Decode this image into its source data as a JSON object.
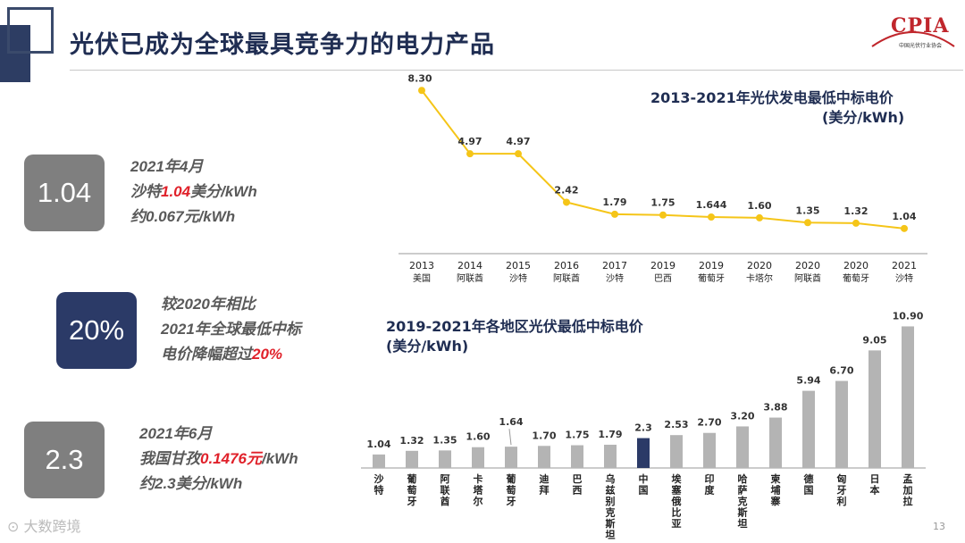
{
  "header": {
    "title": "光伏已成为全球最具竞争力的电力产品",
    "logo_text": "CPIA",
    "logo_subtitle": "中国光伏行业协会"
  },
  "kpis": [
    {
      "value": "1.04",
      "lines": [
        [
          {
            "t": "2021年4月"
          }
        ],
        [
          {
            "t": "沙特"
          },
          {
            "t": "1.04",
            "red": true
          },
          {
            "t": "美分/kWh"
          }
        ],
        [
          {
            "t": "约0.067元/kWh"
          }
        ]
      ]
    },
    {
      "value": "20%",
      "lines": [
        [
          {
            "t": "较2020年相比"
          }
        ],
        [
          {
            "t": "2021年全球最低中标"
          }
        ],
        [
          {
            "t": "电价降幅超过"
          },
          {
            "t": "20%",
            "red": true
          }
        ]
      ]
    },
    {
      "value": "2.3",
      "lines": [
        [
          {
            "t": "2021年6月"
          }
        ],
        [
          {
            "t": "我国甘孜"
          },
          {
            "t": "0.1476元",
            "red": true
          },
          {
            "t": "/kWh"
          }
        ],
        [
          {
            "t": "约2.3美分/kWh"
          }
        ]
      ]
    }
  ],
  "page_number": "13",
  "watermark": "大数跨境",
  "chart_data": [
    {
      "type": "line",
      "title": "2013-2021年光伏发电最低中标电价",
      "subtitle": "(美分/kWh)",
      "series_color": "#f5c518",
      "categories": [
        [
          "2013",
          "美国"
        ],
        [
          "2014",
          "阿联酋"
        ],
        [
          "2015",
          "沙特"
        ],
        [
          "2016",
          "阿联酋"
        ],
        [
          "2017",
          "沙特"
        ],
        [
          "2019",
          "巴西"
        ],
        [
          "2019",
          "葡萄牙"
        ],
        [
          "2020",
          "卡塔尔"
        ],
        [
          "2020",
          "阿联酋"
        ],
        [
          "2020",
          "葡萄牙"
        ],
        [
          "2021",
          "沙特"
        ]
      ],
      "values": [
        8.3,
        4.97,
        4.97,
        2.42,
        1.79,
        1.75,
        1.644,
        1.6,
        1.35,
        1.32,
        1.04
      ],
      "labels": [
        "8.30",
        "4.97",
        "4.97",
        "2.42",
        "1.79",
        "1.75",
        "1.644",
        "1.60",
        "1.35",
        "1.32",
        "1.04"
      ],
      "ylim": [
        0,
        8.5
      ]
    },
    {
      "type": "bar",
      "title": "2019-2021年各地区光伏最低中标电价",
      "subtitle": "(美分/kWh)",
      "bar_color": "#b4b4b4",
      "highlight_color": "#2b3a67",
      "highlight_category": "中国",
      "categories": [
        "沙特",
        "葡萄牙",
        "阿联酋",
        "卡塔尔",
        "葡萄牙",
        "迪拜",
        "巴西",
        "乌兹别克斯坦",
        "中国",
        "埃塞俄比亚",
        "印度",
        "哈萨克斯坦",
        "柬埔寨",
        "德国",
        "匈牙利",
        "日本",
        "孟加拉"
      ],
      "values": [
        1.04,
        1.32,
        1.35,
        1.6,
        1.64,
        1.7,
        1.75,
        1.79,
        2.3,
        2.53,
        2.7,
        3.2,
        3.88,
        5.94,
        6.7,
        9.05,
        10.9
      ],
      "labels": [
        "1.04",
        "1.32",
        "1.35",
        "1.60",
        "1.64",
        "1.70",
        "1.75",
        "1.79",
        "2.3",
        "2.53",
        "2.70",
        "3.20",
        "3.88",
        "5.94",
        "6.70",
        "9.05",
        "10.90"
      ],
      "ylim": [
        0,
        11
      ]
    }
  ]
}
